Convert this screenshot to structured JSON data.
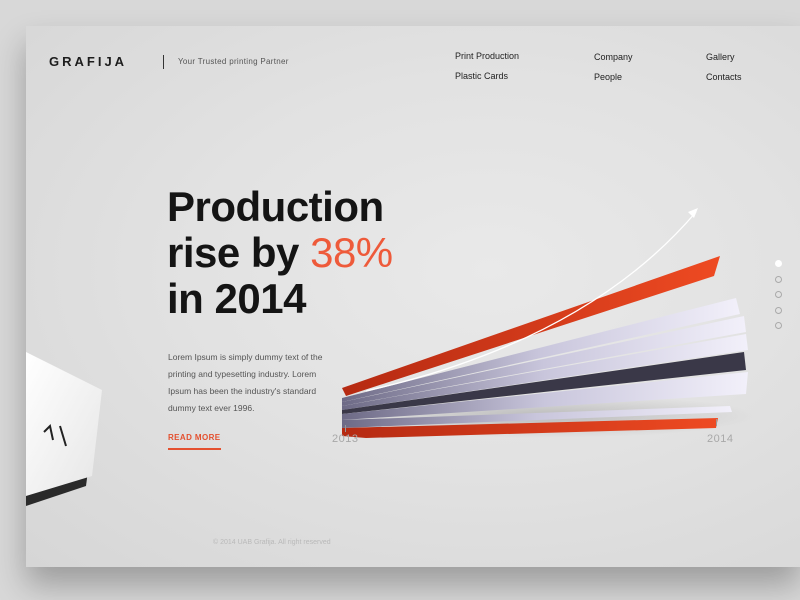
{
  "brand": {
    "logo": "GRAFIJA",
    "tagline": "Your Trusted printing Partner"
  },
  "nav": {
    "items": [
      "Print Production",
      "Plastic Cards",
      "Company",
      "People",
      "Gallery",
      "Contacts"
    ]
  },
  "hero": {
    "line1": "Production",
    "line2_prefix": "rise by ",
    "line2_accent": "38%",
    "line3": "in 2014",
    "body": "Lorem Ipsum is simply dummy text of the printing and typesetting industry. Lorem Ipsum has been the industry's standard dummy text ever 1996.",
    "cta": "READ MORE",
    "year_start": "2013",
    "year_end": "2014"
  },
  "footer": {
    "copyright": "© 2014 UAB Grafija. All right reserved"
  },
  "slider": {
    "count": 5,
    "active_index": 0
  },
  "colors": {
    "accent": "#ee5a3a",
    "text_dark": "#141414",
    "background": "#e4e4e4"
  },
  "icons": {
    "growth_arrow": "arrow-up-right-icon"
  }
}
